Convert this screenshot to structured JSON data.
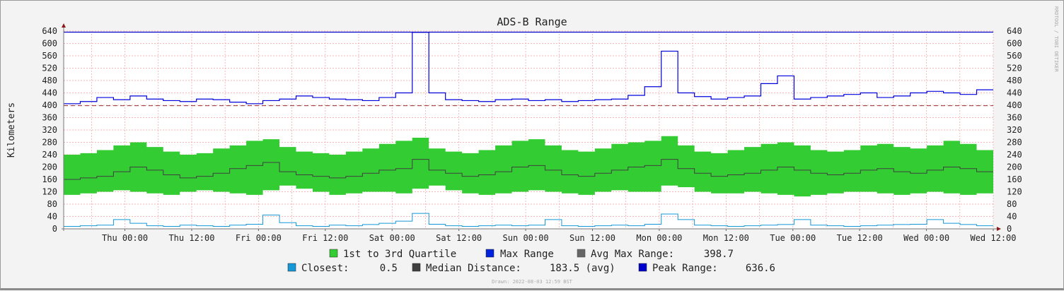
{
  "chart_data": {
    "type": "area",
    "title": "ADS-B Range",
    "ylabel": "Kilometers",
    "watermark": "RRDTOOL / TOBI OETIKER",
    "ylim": [
      0,
      640
    ],
    "yticks": [
      0,
      40,
      80,
      120,
      160,
      200,
      240,
      280,
      320,
      360,
      400,
      440,
      480,
      520,
      560,
      600,
      640
    ],
    "x_range": [
      "Wed 13:00",
      "Wed 12:00"
    ],
    "x_span_hours": 167,
    "xticks": [
      {
        "label": "Thu 00:00",
        "hour": 11
      },
      {
        "label": "Thu 12:00",
        "hour": 23
      },
      {
        "label": "Fri 00:00",
        "hour": 35
      },
      {
        "label": "Fri 12:00",
        "hour": 47
      },
      {
        "label": "Sat 00:00",
        "hour": 59
      },
      {
        "label": "Sat 12:00",
        "hour": 71
      },
      {
        "label": "Sun 00:00",
        "hour": 83
      },
      {
        "label": "Sun 12:00",
        "hour": 95
      },
      {
        "label": "Mon 00:00",
        "hour": 107
      },
      {
        "label": "Mon 12:00",
        "hour": 119
      },
      {
        "label": "Tue 00:00",
        "hour": 131
      },
      {
        "label": "Tue 12:00",
        "hour": 143
      },
      {
        "label": "Wed 00:00",
        "hour": 155
      },
      {
        "label": "Wed 12:00",
        "hour": 167
      }
    ],
    "grid": true,
    "series": [
      {
        "name": "Max Range",
        "color": "#0000dd",
        "style": "step",
        "values": [
          405,
          412,
          425,
          418,
          430,
          420,
          415,
          412,
          420,
          418,
          410,
          405,
          415,
          420,
          430,
          425,
          420,
          418,
          415,
          425,
          440,
          636,
          440,
          418,
          415,
          412,
          418,
          420,
          415,
          418,
          412,
          415,
          418,
          420,
          432,
          460,
          575,
          440,
          428,
          420,
          425,
          430,
          470,
          495,
          420,
          425,
          430,
          435,
          440,
          425,
          430,
          440,
          445,
          440,
          435,
          450
        ]
      },
      {
        "name": "3rd Quartile",
        "color": "#33cc33",
        "values": [
          240,
          245,
          255,
          270,
          280,
          265,
          250,
          240,
          245,
          260,
          270,
          285,
          290,
          265,
          250,
          245,
          240,
          250,
          260,
          275,
          285,
          295,
          260,
          250,
          245,
          255,
          270,
          285,
          290,
          270,
          255,
          250,
          260,
          275,
          280,
          285,
          300,
          270,
          250,
          245,
          255,
          265,
          275,
          280,
          270,
          255,
          250,
          255,
          270,
          275,
          265,
          260,
          270,
          285,
          275,
          255
        ]
      },
      {
        "name": "1st Quartile",
        "color": "#33cc33",
        "values": [
          110,
          115,
          120,
          125,
          120,
          115,
          110,
          120,
          125,
          120,
          115,
          110,
          125,
          140,
          130,
          120,
          110,
          115,
          120,
          120,
          115,
          130,
          140,
          125,
          115,
          110,
          115,
          120,
          125,
          120,
          115,
          110,
          120,
          125,
          120,
          120,
          140,
          135,
          120,
          115,
          115,
          120,
          115,
          110,
          105,
          110,
          115,
          120,
          120,
          115,
          110,
          115,
          120,
          115,
          110,
          115
        ]
      },
      {
        "name": "Median Distance",
        "color": "#404040",
        "style": "step",
        "values": [
          160,
          165,
          170,
          185,
          200,
          190,
          175,
          165,
          170,
          180,
          195,
          205,
          215,
          185,
          175,
          170,
          165,
          170,
          180,
          190,
          195,
          225,
          190,
          180,
          170,
          175,
          185,
          200,
          205,
          190,
          175,
          170,
          180,
          190,
          200,
          205,
          225,
          195,
          180,
          170,
          175,
          180,
          190,
          200,
          190,
          180,
          175,
          180,
          190,
          195,
          185,
          180,
          190,
          200,
          195,
          185
        ]
      },
      {
        "name": "Closest",
        "color": "#1598d8",
        "style": "step",
        "values": [
          8,
          10,
          12,
          30,
          18,
          10,
          8,
          12,
          10,
          8,
          12,
          15,
          45,
          20,
          10,
          8,
          12,
          10,
          14,
          18,
          25,
          50,
          15,
          10,
          8,
          10,
          12,
          10,
          12,
          30,
          10,
          8,
          10,
          12,
          10,
          15,
          48,
          30,
          12,
          10,
          8,
          10,
          12,
          14,
          30,
          12,
          10,
          8,
          10,
          12,
          14,
          15,
          30,
          18,
          14,
          10
        ]
      }
    ],
    "avg_max_range": 398.7,
    "peak_range": 636.6,
    "legend": {
      "quartile": "1st to 3rd Quartile",
      "max_range": "Max Range",
      "avg_max_range": "Avg Max Range:",
      "avg_max_range_value": "398.7",
      "closest": "Closest:",
      "closest_value": "0.5",
      "median": "Median Distance:",
      "median_value": "183.5 (avg)",
      "peak": "Peak Range:",
      "peak_value": "636.6"
    },
    "drawn": "Drawn: 2022-08-03 12:59 BST",
    "colors": {
      "quartile": "#33cc33",
      "max": "#0022dd",
      "avg": "#666666",
      "closest": "#1598d8",
      "median": "#404040",
      "peak": "#0000cc",
      "avg_line": "#993333",
      "grid": "#f0a0a0"
    }
  }
}
